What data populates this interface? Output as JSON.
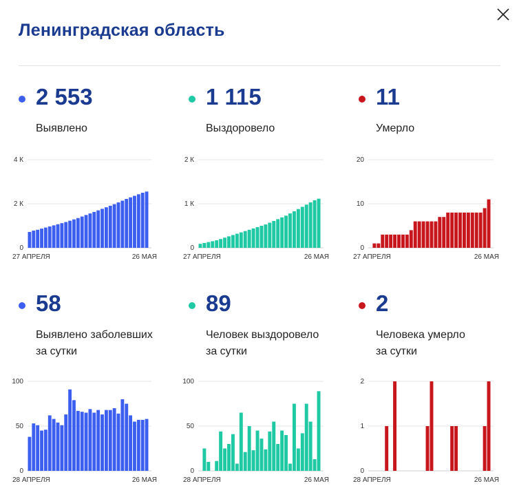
{
  "header": {
    "title": "Ленинградская область"
  },
  "stats": [
    {
      "value": "2 553",
      "label_lines": [
        "Выявлено"
      ],
      "color": "#3d5ff0"
    },
    {
      "value": "1 115",
      "label_lines": [
        "Выздоровело"
      ],
      "color": "#1ec9a3"
    },
    {
      "value": "11",
      "label_lines": [
        "Умерло"
      ],
      "color": "#c8161d"
    },
    {
      "value": "58",
      "label_lines": [
        "Выявлено заболевших",
        "за сутки"
      ],
      "color": "#3d5ff0"
    },
    {
      "value": "89",
      "label_lines": [
        "Человек выздоровело",
        "за сутки"
      ],
      "color": "#1ec9a3"
    },
    {
      "value": "2",
      "label_lines": [
        "Человека умерло",
        "за сутки"
      ],
      "color": "#c8161d"
    }
  ],
  "chart_data": [
    {
      "type": "bar",
      "color": "#3d5ff0",
      "ylim": [
        0,
        4000
      ],
      "yticks": [
        {
          "value": 0,
          "label": "0"
        },
        {
          "value": 2000,
          "label": "2 К"
        },
        {
          "value": 4000,
          "label": "4 К"
        }
      ],
      "x_start_label": "27 АПРЕЛЯ",
      "x_end_label": "26 МАЯ",
      "values": [
        720,
        780,
        820,
        870,
        920,
        970,
        1020,
        1070,
        1120,
        1170,
        1230,
        1290,
        1350,
        1420,
        1490,
        1560,
        1630,
        1700,
        1770,
        1840,
        1910,
        1980,
        2060,
        2140,
        2220,
        2290,
        2360,
        2430,
        2500,
        2553
      ]
    },
    {
      "type": "bar",
      "color": "#1ec9a3",
      "ylim": [
        0,
        2000
      ],
      "yticks": [
        {
          "value": 0,
          "label": "0"
        },
        {
          "value": 1000,
          "label": "1 К"
        },
        {
          "value": 2000,
          "label": "2 К"
        }
      ],
      "x_start_label": "27 АПРЕЛЯ",
      "x_end_label": "26 МАЯ",
      "values": [
        90,
        110,
        130,
        150,
        170,
        200,
        230,
        260,
        290,
        320,
        350,
        380,
        410,
        440,
        470,
        500,
        530,
        570,
        610,
        650,
        690,
        730,
        780,
        830,
        880,
        930,
        980,
        1030,
        1080,
        1115
      ]
    },
    {
      "type": "bar",
      "color": "#c8161d",
      "ylim": [
        0,
        20
      ],
      "yticks": [
        {
          "value": 0,
          "label": "0"
        },
        {
          "value": 10,
          "label": "10"
        },
        {
          "value": 20,
          "label": "20"
        }
      ],
      "x_start_label": "27 АПРЕЛЯ",
      "x_end_label": "26 МАЯ",
      "values": [
        0,
        1,
        1,
        3,
        3,
        3,
        3,
        3,
        3,
        3,
        4,
        6,
        6,
        6,
        6,
        6,
        6,
        7,
        7,
        8,
        8,
        8,
        8,
        8,
        8,
        8,
        8,
        8,
        9,
        11
      ]
    },
    {
      "type": "bar",
      "color": "#3d5ff0",
      "ylim": [
        0,
        100
      ],
      "yticks": [
        {
          "value": 0,
          "label": "0"
        },
        {
          "value": 50,
          "label": "50"
        },
        {
          "value": 100,
          "label": "100"
        }
      ],
      "x_start_label": "28 АПРЕЛЯ",
      "x_end_label": "26 МАЯ",
      "values": [
        38,
        53,
        51,
        45,
        46,
        62,
        58,
        54,
        51,
        63,
        91,
        79,
        67,
        66,
        65,
        69,
        65,
        68,
        63,
        68,
        68,
        70,
        64,
        80,
        75,
        62,
        55,
        57,
        57,
        58
      ]
    },
    {
      "type": "bar",
      "color": "#1ec9a3",
      "ylim": [
        0,
        100
      ],
      "yticks": [
        {
          "value": 0,
          "label": "0"
        },
        {
          "value": 50,
          "label": "50"
        },
        {
          "value": 100,
          "label": "100"
        }
      ],
      "x_start_label": "28 АПРЕЛЯ",
      "x_end_label": "26 МАЯ",
      "values": [
        0,
        25,
        10,
        0,
        11,
        44,
        25,
        30,
        41,
        8,
        65,
        21,
        50,
        23,
        45,
        36,
        24,
        44,
        55,
        30,
        45,
        40,
        8,
        75,
        25,
        42,
        75,
        55,
        13,
        89
      ]
    },
    {
      "type": "bar",
      "color": "#c8161d",
      "ylim": [
        0,
        2
      ],
      "yticks": [
        {
          "value": 0,
          "label": "0"
        },
        {
          "value": 1,
          "label": "1"
        },
        {
          "value": 2,
          "label": "2"
        }
      ],
      "x_start_label": "28 АПРЕЛЯ",
      "x_end_label": "26 МАЯ",
      "values": [
        0,
        0,
        0,
        0,
        1,
        0,
        2,
        0,
        0,
        0,
        0,
        0,
        0,
        0,
        1,
        2,
        0,
        0,
        0,
        0,
        1,
        1,
        0,
        0,
        0,
        0,
        0,
        0,
        1,
        2
      ]
    }
  ]
}
